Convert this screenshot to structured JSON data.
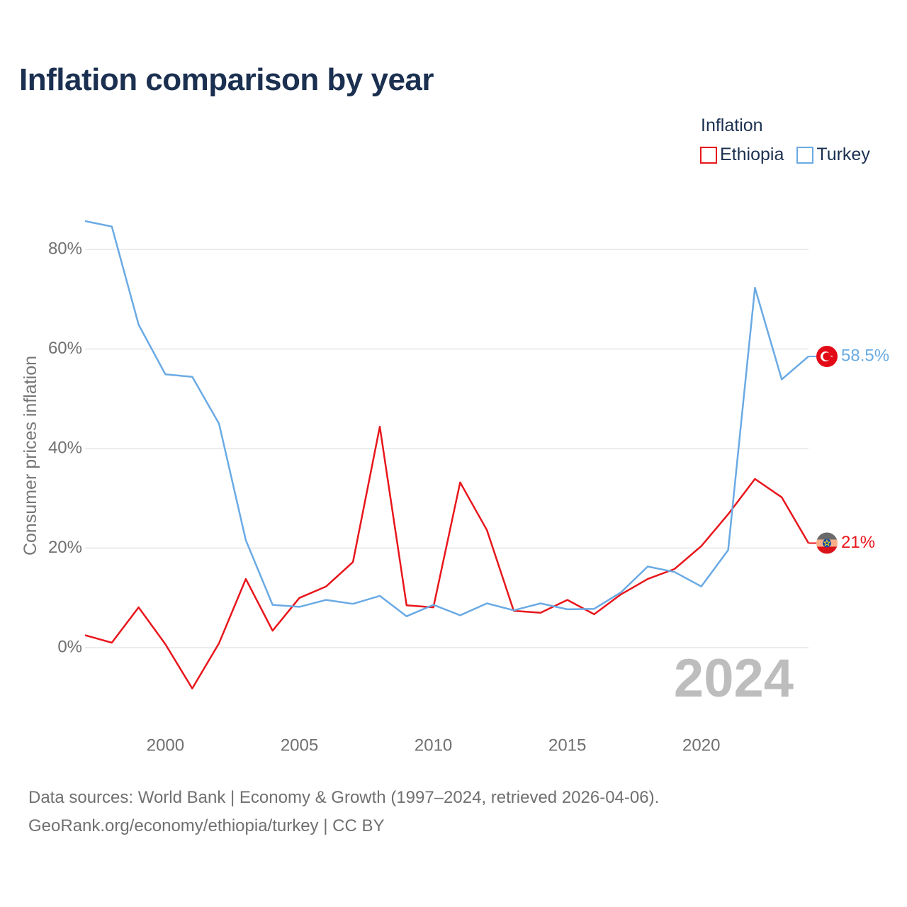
{
  "title": "Inflation comparison by year",
  "legend": {
    "title": "Inflation",
    "items": [
      {
        "label": "Ethiopia",
        "color": "#e8161c"
      },
      {
        "label": "Turkey",
        "color": "#6aaae4"
      }
    ]
  },
  "year_watermark": "2024",
  "end_labels": {
    "ethiopia": "21%",
    "turkey": "58.5%"
  },
  "flags": {
    "ethiopia": "flag-ethiopia-icon",
    "turkey": "flag-turkey-icon"
  },
  "source": {
    "line1": "Data sources: World Bank | Economy & Growth (1997–2024, retrieved 2026-04-06).",
    "line2": "GeoRank.org/economy/ethiopia/turkey | CC BY"
  },
  "chart_data": {
    "type": "line",
    "title": "Inflation comparison by year",
    "xlabel": "",
    "ylabel": "Consumer prices inflation",
    "x": [
      1997,
      1998,
      1999,
      2000,
      2001,
      2002,
      2003,
      2004,
      2005,
      2006,
      2007,
      2008,
      2009,
      2010,
      2011,
      2012,
      2013,
      2014,
      2015,
      2016,
      2017,
      2018,
      2019,
      2020,
      2021,
      2022,
      2023,
      2024
    ],
    "xlim": [
      1997,
      2024
    ],
    "ylim": [
      -13,
      90
    ],
    "x_ticks": [
      2000,
      2005,
      2010,
      2015,
      2020
    ],
    "y_ticks": [
      0,
      20,
      40,
      60,
      80
    ],
    "y_tick_labels": [
      "0%",
      "20%",
      "40%",
      "60%",
      "80%"
    ],
    "grid": true,
    "legend_position": "top-right",
    "series": [
      {
        "name": "Ethiopia",
        "color": "#e8161c",
        "values": [
          2.5,
          1.0,
          8.1,
          0.7,
          -8.2,
          0.9,
          13.8,
          3.4,
          10.0,
          12.3,
          17.2,
          44.4,
          8.5,
          8.1,
          33.2,
          23.6,
          7.4,
          7.0,
          9.6,
          6.7,
          10.7,
          13.8,
          15.8,
          20.4,
          26.8,
          33.9,
          30.2,
          21.0
        ]
      },
      {
        "name": "Turkey",
        "color": "#6aaae4",
        "values": [
          85.7,
          84.6,
          64.9,
          54.9,
          54.4,
          45.0,
          21.6,
          8.6,
          8.2,
          9.6,
          8.8,
          10.4,
          6.3,
          8.6,
          6.5,
          8.9,
          7.5,
          8.9,
          7.7,
          7.8,
          11.1,
          16.3,
          15.2,
          12.3,
          19.6,
          72.3,
          53.9,
          58.5
        ]
      }
    ]
  }
}
